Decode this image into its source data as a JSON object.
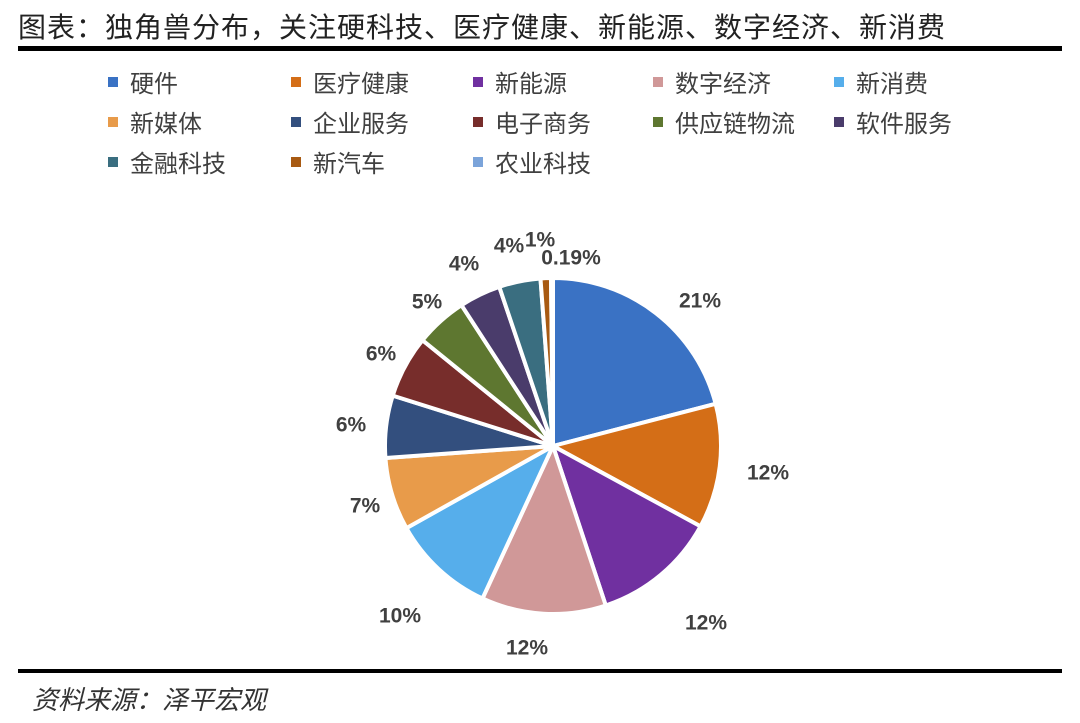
{
  "title": "图表：独角兽分布，关注硬科技、医疗健康、新能源、数字经济、新消费",
  "source": "资料来源：泽平宏观",
  "chart_data": {
    "type": "pie",
    "title": "图表：独角兽分布，关注硬科技、医疗健康、新能源、数字经济、新消费",
    "start_angle": "12 o'clock, clockwise",
    "legend_position": "top",
    "categories": [
      "硬件",
      "医疗健康",
      "新能源",
      "数字经济",
      "新消费",
      "新媒体",
      "企业服务",
      "电子商务",
      "供应链物流",
      "软件服务",
      "金融科技",
      "新汽车",
      "农业科技"
    ],
    "values": [
      21,
      12,
      12,
      12,
      10,
      7,
      6,
      6,
      5,
      4,
      4,
      1,
      0.19
    ],
    "labels": [
      "21%",
      "12%",
      "12%",
      "12%",
      "10%",
      "7%",
      "6%",
      "6%",
      "5%",
      "4%",
      "4%",
      "1%",
      "0.19%"
    ],
    "colors": [
      "#3A72C4",
      "#D46E17",
      "#7030A0",
      "#D09898",
      "#56AEEB",
      "#E89B4A",
      "#334F7E",
      "#772D2B",
      "#5E7730",
      "#4A3C6B",
      "#3A6E80",
      "#A85A12",
      "#7BA4DA"
    ]
  },
  "legend": [
    {
      "label": "硬件",
      "color": "#3A72C4"
    },
    {
      "label": "医疗健康",
      "color": "#D46E17"
    },
    {
      "label": "新能源",
      "color": "#7030A0"
    },
    {
      "label": "数字经济",
      "color": "#D09898"
    },
    {
      "label": "新消费",
      "color": "#56AEEB"
    },
    {
      "label": "新媒体",
      "color": "#E89B4A"
    },
    {
      "label": "企业服务",
      "color": "#334F7E"
    },
    {
      "label": "电子商务",
      "color": "#772D2B"
    },
    {
      "label": "供应链物流",
      "color": "#5E7730"
    },
    {
      "label": "软件服务",
      "color": "#4A3C6B"
    },
    {
      "label": "金融科技",
      "color": "#3A6E80"
    },
    {
      "label": "新汽车",
      "color": "#A85A12"
    },
    {
      "label": "农业科技",
      "color": "#7BA4DA"
    }
  ]
}
